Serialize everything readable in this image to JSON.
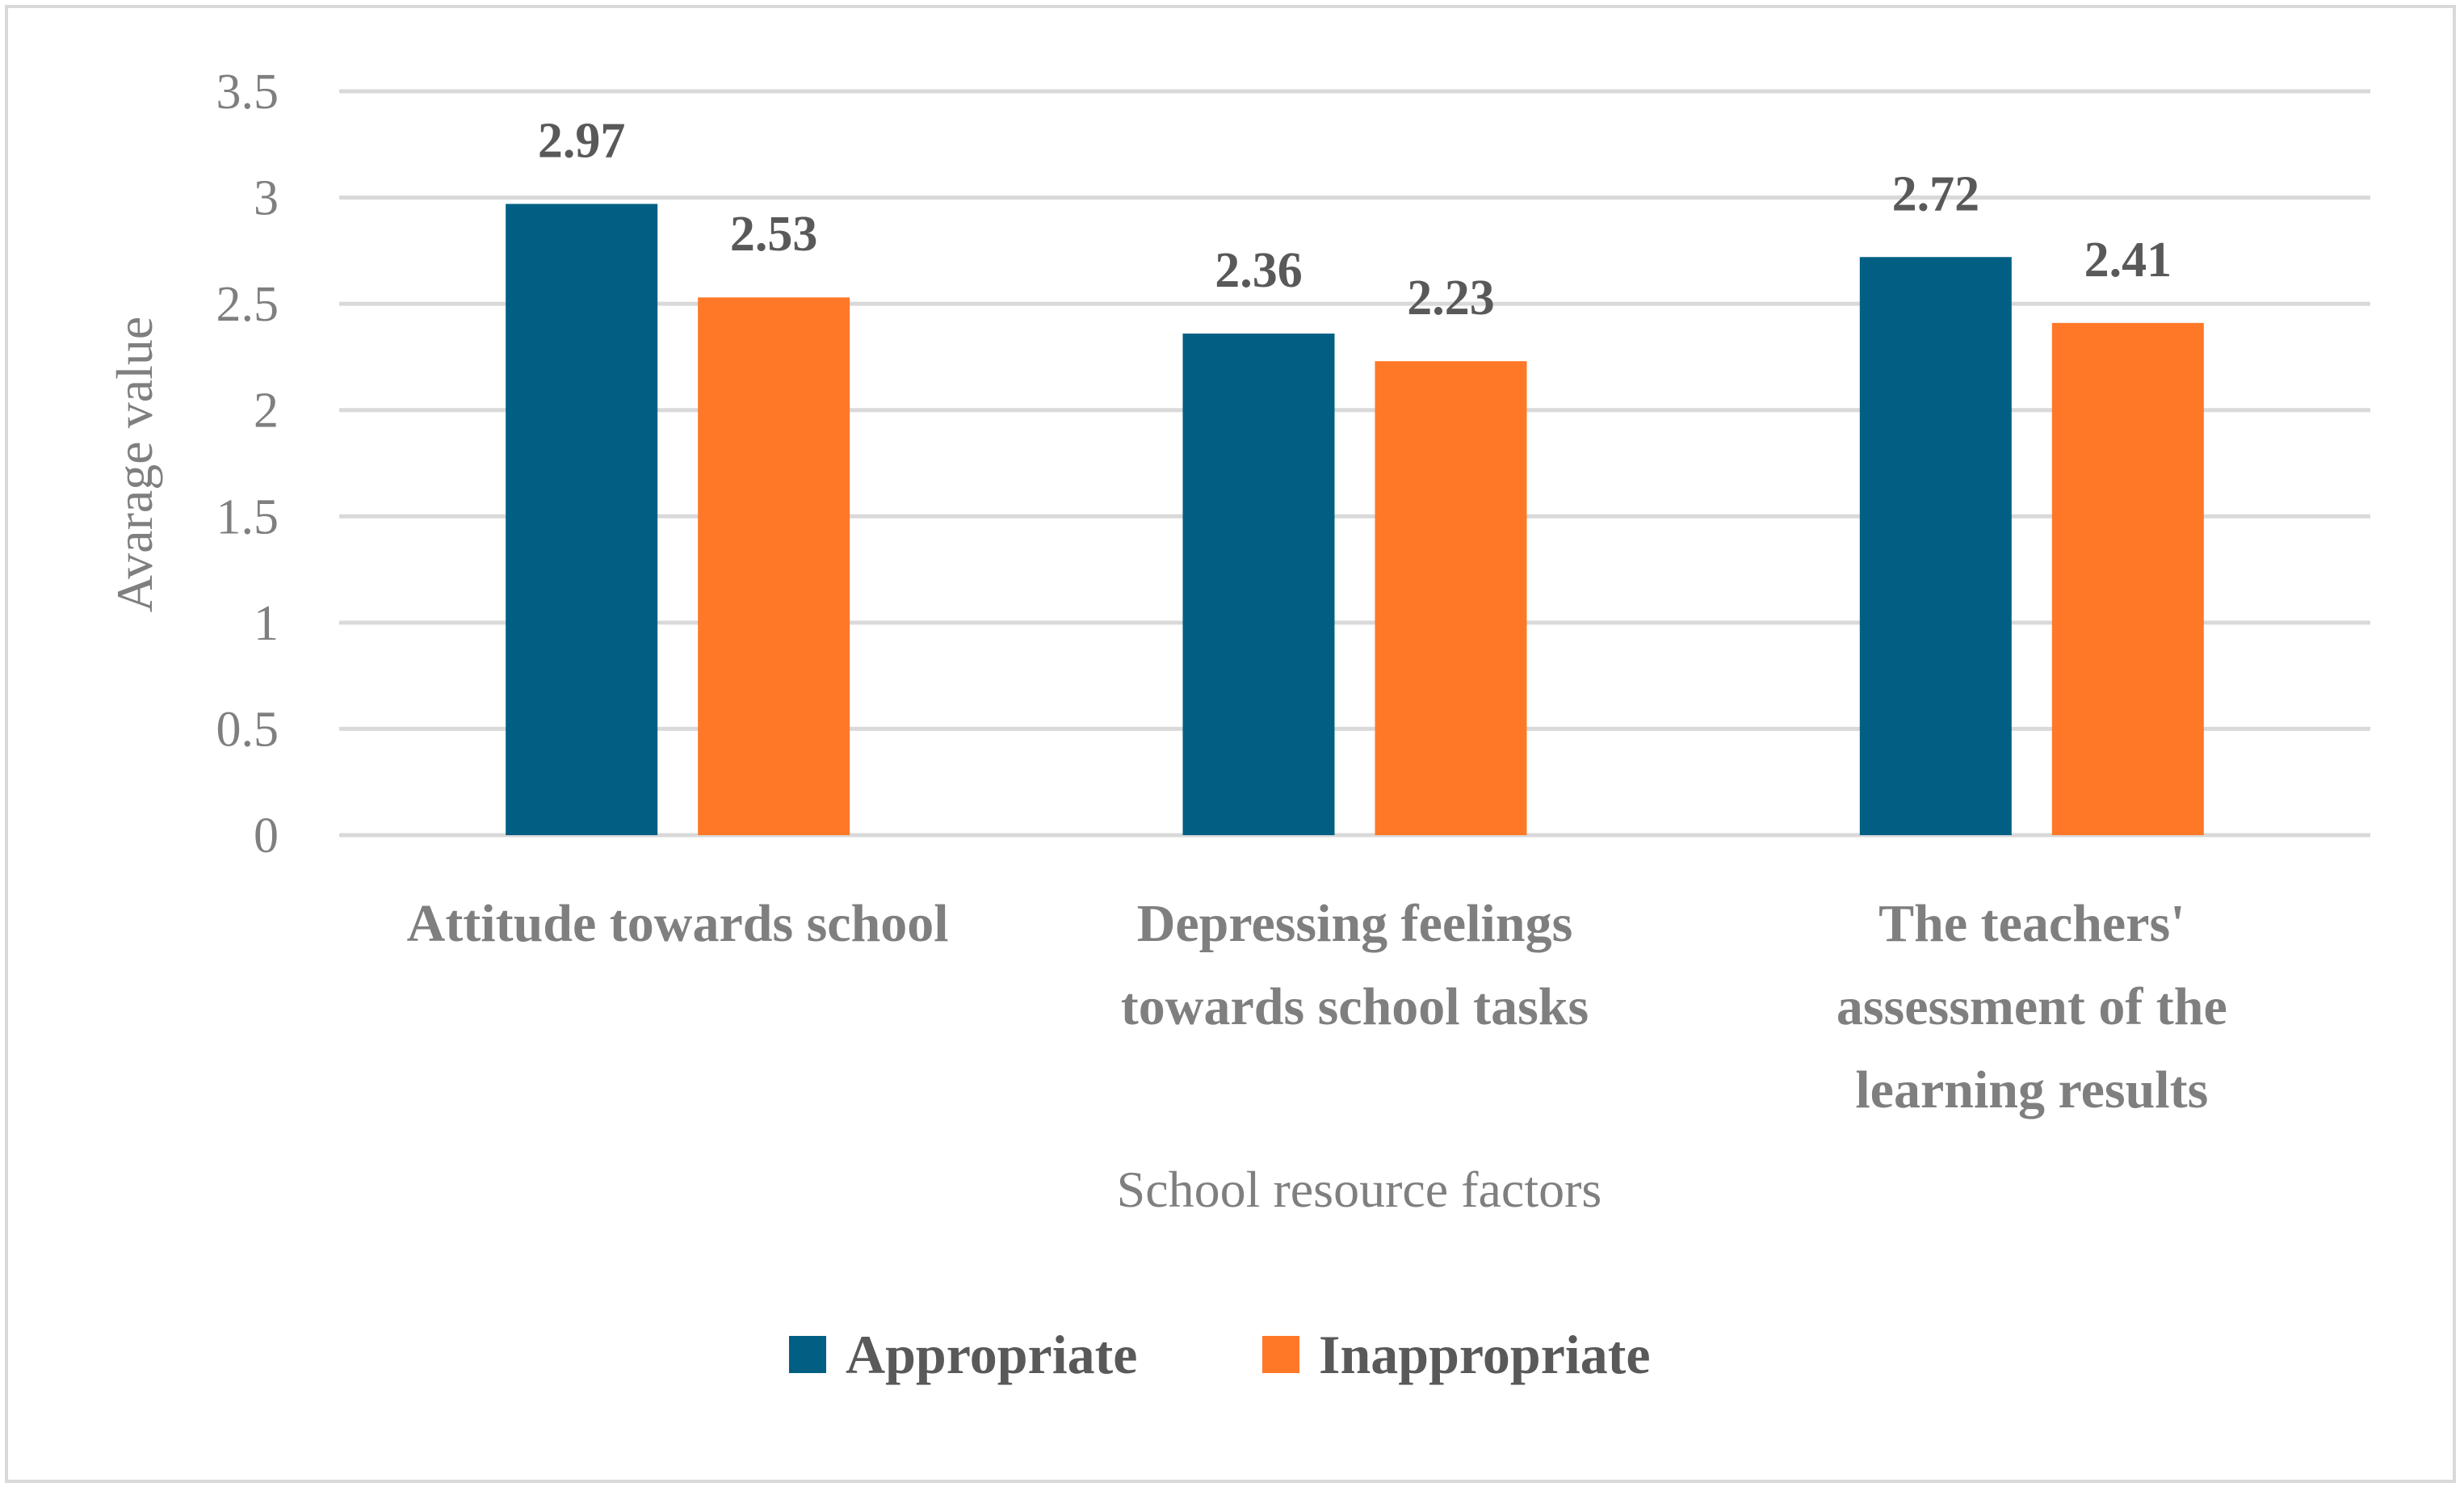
{
  "chart_data": {
    "type": "bar",
    "title": "",
    "xlabel": "School resource factors",
    "ylabel": "Avarage value",
    "ylim": [
      0,
      3.5
    ],
    "yticks": [
      "0",
      "0.5",
      "1",
      "1.5",
      "2",
      "2.5",
      "3",
      "3.5"
    ],
    "grid": true,
    "legend_position": "bottom",
    "categories": [
      [
        "Attitude towards school"
      ],
      [
        "Depressing feelings",
        "towards school tasks"
      ],
      [
        "The teachers'",
        "assessment of the",
        "learning results"
      ]
    ],
    "series": [
      {
        "name": "Appropriate",
        "color": "#005f83",
        "values": [
          2.97,
          2.36,
          2.72
        ],
        "labels": [
          "2.97",
          "2.36",
          "2.72"
        ]
      },
      {
        "name": "Inappropriate",
        "color": "#ff7828",
        "values": [
          2.53,
          2.23,
          2.41
        ],
        "labels": [
          "2.53",
          "2.23",
          "2.41"
        ]
      }
    ]
  }
}
